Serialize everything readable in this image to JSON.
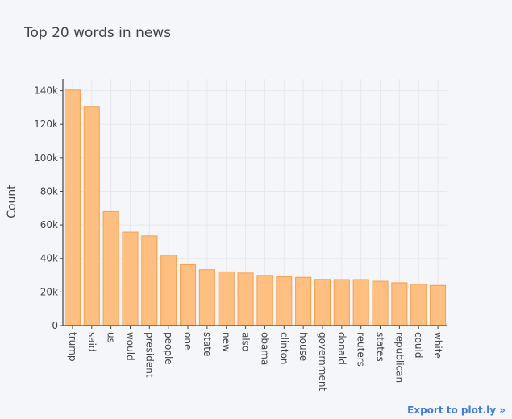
{
  "chart_data": {
    "type": "bar",
    "title": "Top 20 words in news",
    "xlabel": "",
    "ylabel": "Count",
    "categories": [
      "trump",
      "said",
      "us",
      "would",
      "president",
      "people",
      "one",
      "state",
      "new",
      "also",
      "obama",
      "clinton",
      "house",
      "government",
      "donald",
      "reuters",
      "states",
      "republican",
      "could",
      "white"
    ],
    "values": [
      140400,
      130300,
      68000,
      55700,
      53400,
      41900,
      36300,
      33300,
      32000,
      31300,
      29900,
      29100,
      28700,
      27500,
      27400,
      27400,
      26400,
      25500,
      24600,
      23900
    ],
    "ylim": [
      0,
      147000
    ],
    "yticks": [
      0,
      20000,
      40000,
      60000,
      80000,
      100000,
      120000,
      140000
    ],
    "ytick_labels": [
      "0",
      "20k",
      "40k",
      "60k",
      "80k",
      "100k",
      "120k",
      "140k"
    ],
    "grid": true,
    "bar_color": "#ffbf80",
    "bar_edge_color": "#f5a04e",
    "background": "#f5f6fa"
  },
  "export_link": "Export to plot.ly »"
}
